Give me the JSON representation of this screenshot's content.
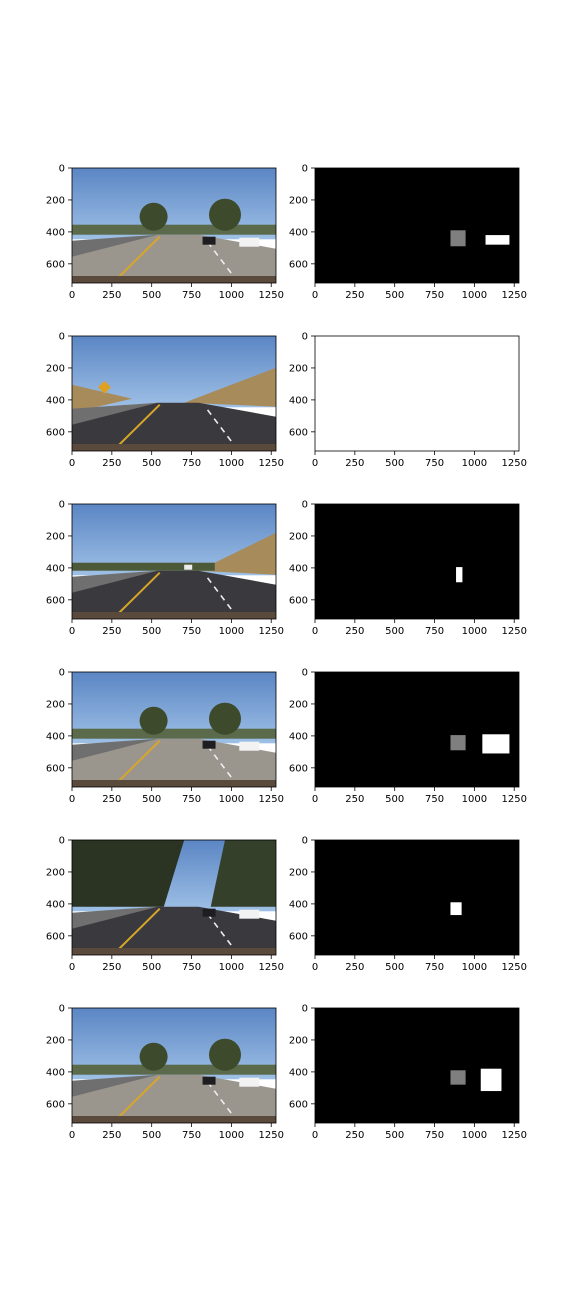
{
  "chart_data": {
    "type": "image-grid",
    "rows": 6,
    "cols": 2,
    "x_ticks": [
      0,
      250,
      500,
      750,
      1000,
      1250
    ],
    "y_ticks": [
      0,
      200,
      400,
      600
    ],
    "xlim": [
      0,
      1280
    ],
    "ylim": [
      720,
      0
    ],
    "panels": [
      {
        "row": 0,
        "col": 0,
        "kind": "road-photo",
        "scene": "cars-right"
      },
      {
        "row": 0,
        "col": 1,
        "kind": "heatmap",
        "background": "#000000",
        "blobs": [
          {
            "x": [
              850,
              945
            ],
            "y": [
              390,
              490
            ],
            "level": "gray"
          },
          {
            "x": [
              1070,
              1220
            ],
            "y": [
              420,
              480
            ],
            "level": "white"
          }
        ]
      },
      {
        "row": 1,
        "col": 0,
        "kind": "road-photo",
        "scene": "hill-sign"
      },
      {
        "row": 1,
        "col": 1,
        "kind": "heatmap",
        "background": "#ffffff",
        "blobs": []
      },
      {
        "row": 2,
        "col": 0,
        "kind": "road-photo",
        "scene": "hill-open"
      },
      {
        "row": 2,
        "col": 1,
        "kind": "heatmap",
        "background": "#000000",
        "blobs": [
          {
            "x": [
              885,
              925
            ],
            "y": [
              395,
              490
            ],
            "level": "white"
          }
        ]
      },
      {
        "row": 3,
        "col": 0,
        "kind": "road-photo",
        "scene": "cars-right"
      },
      {
        "row": 3,
        "col": 1,
        "kind": "heatmap",
        "background": "#000000",
        "blobs": [
          {
            "x": [
              850,
              945
            ],
            "y": [
              395,
              490
            ],
            "level": "gray"
          },
          {
            "x": [
              1050,
              1220
            ],
            "y": [
              390,
              510
            ],
            "level": "white"
          }
        ]
      },
      {
        "row": 4,
        "col": 0,
        "kind": "road-photo",
        "scene": "trees-dark"
      },
      {
        "row": 4,
        "col": 1,
        "kind": "heatmap",
        "background": "#000000",
        "blobs": [
          {
            "x": [
              850,
              920
            ],
            "y": [
              390,
              470
            ],
            "level": "white"
          }
        ]
      },
      {
        "row": 5,
        "col": 0,
        "kind": "road-photo",
        "scene": "cars-right"
      },
      {
        "row": 5,
        "col": 1,
        "kind": "heatmap",
        "background": "#000000",
        "blobs": [
          {
            "x": [
              850,
              945
            ],
            "y": [
              390,
              480
            ],
            "level": "gray"
          },
          {
            "x": [
              1040,
              1170
            ],
            "y": [
              380,
              520
            ],
            "level": "white"
          }
        ]
      }
    ]
  },
  "colors": {
    "sky": "#5b86c4",
    "sky_light": "#9ec0e6",
    "road": "#3a3a3e",
    "road_light": "#9a968d",
    "lane_yellow": "#d9a62a",
    "tree": "#3d4a2c",
    "hill": "#a78b5b",
    "gray_blob": "#7f7f7f",
    "white_blob": "#ffffff"
  }
}
